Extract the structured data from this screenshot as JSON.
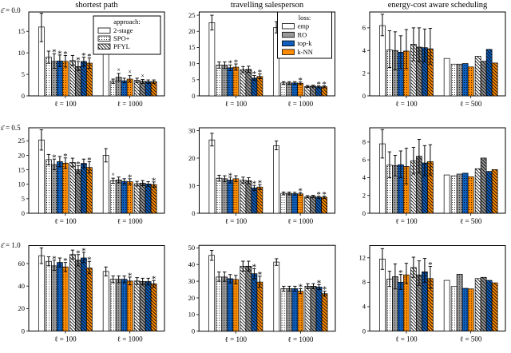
{
  "chart_data": {
    "type": "bar",
    "grid": {
      "rows": 3,
      "cols": 3
    },
    "col_titles": [
      "shortest path",
      "travelling salesperson",
      "energy-cost aware scheduling"
    ],
    "row_labels": [
      "ε̄ = 0.0",
      "ε̄ = 0.5",
      "ε̄ = 1.0"
    ],
    "legends": {
      "approach": {
        "title": "approach:",
        "items": [
          "2-stage",
          "SPO+",
          "PFYL"
        ]
      },
      "loss": {
        "title": "loss:",
        "items": [
          "emp",
          "RO",
          "top-k",
          "k-NN"
        ]
      }
    },
    "bar_order": [
      [
        "2-stage",
        "emp"
      ],
      [
        "SPO+",
        "emp"
      ],
      [
        "SPO+",
        "RO"
      ],
      [
        "SPO+",
        "top-k"
      ],
      [
        "SPO+",
        "k-NN"
      ],
      [
        "PFYL",
        "emp"
      ],
      [
        "PFYL",
        "RO"
      ],
      [
        "PFYL",
        "top-k"
      ],
      [
        "PFYL",
        "k-NN"
      ]
    ],
    "colors": {
      "emp": "#ffffff",
      "RO": "#999999",
      "top-k": "#0e5fbe",
      "k-NN": "#ff8c00"
    },
    "hatches": {
      "2-stage": "none",
      "SPO+": "dots",
      "PFYL": "diag"
    },
    "subplots": [
      {
        "row": 0,
        "col": 0,
        "ylim": [
          0,
          19.5
        ],
        "yticks": [
          0,
          5,
          10,
          15
        ],
        "legend": "approach",
        "groups": [
          {
            "label": "ℓ = 100",
            "values": [
              16.0,
              9.0,
              8.0,
              8.1,
              8.0,
              8.2,
              6.8,
              8.0,
              7.6
            ],
            "err_low": [
              12.6,
              7.6,
              6.4,
              6.8,
              6.7,
              7.0,
              5.9,
              6.9,
              6.4
            ],
            "err_high": [
              19.2,
              10.4,
              9.8,
              9.5,
              9.4,
              9.4,
              8.0,
              9.0,
              8.8
            ],
            "marks": [
              "",
              "",
              "*",
              "*",
              "*",
              "",
              "*",
              "*",
              "*"
            ]
          },
          {
            "label": "ℓ = 1000",
            "values": [
              13.0,
              3.4,
              4.3,
              3.5,
              3.9,
              3.6,
              3.4,
              3.3,
              3.3
            ],
            "err_low": [
              11.0,
              2.9,
              3.4,
              3.0,
              3.2,
              3.1,
              2.9,
              2.9,
              2.9
            ],
            "err_high": [
              15.0,
              3.9,
              5.2,
              4.1,
              4.7,
              4.1,
              3.8,
              3.7,
              3.7
            ],
            "marks": [
              "",
              "",
              "×",
              "",
              "×",
              "",
              "×",
              "",
              ""
            ]
          }
        ]
      },
      {
        "row": 0,
        "col": 1,
        "ylim": [
          0,
          26
        ],
        "yticks": [
          0,
          5,
          10,
          15,
          20,
          25
        ],
        "legend": "loss",
        "groups": [
          {
            "label": "ℓ = 100",
            "values": [
              22.7,
              9.5,
              9.5,
              8.7,
              8.9,
              8.1,
              8.2,
              5.5,
              6.0
            ],
            "err_low": [
              20.4,
              8.6,
              8.5,
              7.8,
              8.0,
              7.2,
              7.3,
              4.8,
              5.3
            ],
            "err_high": [
              25.0,
              10.5,
              10.5,
              9.6,
              9.9,
              9.1,
              9.2,
              6.3,
              6.8
            ],
            "marks": [
              "",
              "",
              "",
              "*",
              "*",
              "",
              "",
              "*",
              "*"
            ]
          },
          {
            "label": "ℓ = 1000",
            "values": [
              21.2,
              4.0,
              4.0,
              4.0,
              3.9,
              2.9,
              3.0,
              2.8,
              2.8
            ],
            "err_low": [
              19.5,
              3.6,
              3.6,
              3.6,
              3.5,
              2.6,
              2.7,
              2.5,
              2.5
            ],
            "err_high": [
              23.0,
              4.4,
              4.4,
              4.4,
              4.3,
              3.2,
              3.3,
              3.1,
              3.1
            ],
            "marks": [
              "",
              "",
              "",
              "",
              "*",
              "",
              "",
              "*",
              "*"
            ]
          }
        ]
      },
      {
        "row": 0,
        "col": 2,
        "ylim": [
          0,
          7.4
        ],
        "yticks": [
          0,
          2,
          4,
          6
        ],
        "legend": "",
        "groups": [
          {
            "label": "ℓ = 100",
            "values": [
              6.2,
              4.05,
              4.0,
              3.85,
              3.95,
              4.55,
              4.3,
              4.25,
              4.15
            ],
            "err_low": [
              5.3,
              2.5,
              2.3,
              2.4,
              2.4,
              3.1,
              3.0,
              3.0,
              2.8
            ],
            "err_high": [
              7.2,
              5.75,
              5.65,
              5.3,
              5.85,
              6.0,
              6.0,
              5.9,
              5.95
            ],
            "marks": [
              "",
              "",
              "",
              "",
              "",
              "",
              "",
              "",
              ""
            ]
          },
          {
            "label": "ℓ = 500",
            "values": [
              3.3,
              2.8,
              2.8,
              2.85,
              2.55,
              3.5,
              3.05,
              4.1,
              2.9
            ],
            "err_low": null,
            "err_high": null,
            "marks": [
              "",
              "",
              "",
              "",
              "",
              "",
              "",
              "",
              ""
            ]
          }
        ]
      },
      {
        "row": 1,
        "col": 0,
        "ylim": [
          0,
          29.5
        ],
        "yticks": [
          0,
          5,
          10,
          15,
          20,
          25
        ],
        "legend": "",
        "groups": [
          {
            "label": "ℓ = 100",
            "values": [
              25.3,
              18.5,
              16.8,
              17.8,
              17.3,
              17.5,
              15.0,
              17.2,
              15.8
            ],
            "err_low": [
              21.8,
              16.7,
              15.0,
              16.0,
              15.5,
              16.0,
              13.7,
              15.7,
              13.9
            ],
            "err_high": [
              28.8,
              20.3,
              18.7,
              19.6,
              19.1,
              19.0,
              16.4,
              18.7,
              17.8
            ],
            "marks": [
              "",
              "",
              "*",
              "",
              "*",
              "",
              "*",
              "",
              "*"
            ]
          },
          {
            "label": "ℓ = 1000",
            "values": [
              20.0,
              11.2,
              11.5,
              11.0,
              10.9,
              10.2,
              10.4,
              10.1,
              9.9
            ],
            "err_low": [
              17.7,
              10.3,
              10.5,
              10.1,
              9.9,
              9.4,
              9.5,
              9.3,
              9.0
            ],
            "err_high": [
              22.3,
              12.1,
              12.5,
              11.9,
              11.9,
              11.0,
              11.3,
              10.9,
              10.8
            ],
            "marks": [
              "",
              "×",
              "",
              "",
              "*",
              "",
              "",
              "",
              "*"
            ]
          }
        ]
      },
      {
        "row": 1,
        "col": 1,
        "ylim": [
          0,
          31
        ],
        "yticks": [
          0,
          10,
          20,
          30
        ],
        "legend": "",
        "groups": [
          {
            "label": "ℓ = 100",
            "values": [
              26.6,
              12.7,
              12.5,
              12.0,
              12.5,
              12.0,
              11.8,
              9.2,
              9.5
            ],
            "err_low": [
              24.4,
              11.6,
              11.4,
              11.0,
              11.4,
              10.9,
              10.7,
              8.3,
              8.6
            ],
            "err_high": [
              29.0,
              13.8,
              13.6,
              13.1,
              13.6,
              13.1,
              12.9,
              10.1,
              10.4
            ],
            "marks": [
              "",
              "",
              "",
              "*",
              "",
              "",
              "",
              "*",
              "*"
            ]
          },
          {
            "label": "ℓ = 1000",
            "values": [
              24.5,
              7.2,
              7.2,
              7.1,
              7.0,
              6.0,
              6.1,
              5.8,
              5.8
            ],
            "err_low": [
              23.0,
              6.7,
              6.7,
              6.6,
              6.5,
              5.6,
              5.7,
              5.4,
              5.4
            ],
            "err_high": [
              26.2,
              7.7,
              7.7,
              7.6,
              7.5,
              6.4,
              6.5,
              6.2,
              6.2
            ],
            "marks": [
              "",
              "",
              "",
              "",
              "*",
              "",
              "",
              "*",
              "*"
            ]
          }
        ]
      },
      {
        "row": 1,
        "col": 2,
        "ylim": [
          0,
          9.6
        ],
        "yticks": [
          0,
          2,
          4,
          6,
          8
        ],
        "legend": "",
        "groups": [
          {
            "label": "ℓ = 100",
            "values": [
              7.8,
              5.4,
              5.35,
              5.45,
              5.25,
              5.9,
              6.4,
              5.65,
              5.8
            ],
            "err_low": [
              6.2,
              4.0,
              4.2,
              4.0,
              3.3,
              4.4,
              4.5,
              4.2,
              4.3
            ],
            "err_high": [
              9.4,
              6.9,
              6.5,
              7.0,
              7.3,
              7.4,
              8.3,
              7.6,
              7.7
            ],
            "marks": [
              "",
              "",
              "",
              "",
              "",
              "",
              "",
              "",
              ""
            ]
          },
          {
            "label": "ℓ = 500",
            "values": [
              4.3,
              4.2,
              4.4,
              4.5,
              4.1,
              5.0,
              6.2,
              4.7,
              4.9
            ],
            "err_low": null,
            "err_high": null,
            "marks": [
              "",
              "",
              "",
              "",
              "",
              "",
              "",
              "",
              ""
            ]
          }
        ]
      },
      {
        "row": 2,
        "col": 0,
        "ylim": [
          0,
          76
        ],
        "yticks": [
          0,
          20,
          40,
          60
        ],
        "legend": "",
        "groups": [
          {
            "label": "ℓ = 100",
            "values": [
              67,
              62,
              58,
              61,
              57,
              68,
              63,
              65,
              56
            ],
            "err_low": [
              60,
              58,
              54,
              57,
              53,
              64,
              58,
              61,
              51
            ],
            "err_high": [
              74,
              66,
              63,
              65,
              61,
              72,
              68,
              70,
              62
            ],
            "marks": [
              "",
              "",
              "*",
              "",
              "*",
              "",
              "*",
              "*",
              "*"
            ]
          },
          {
            "label": "ℓ = 1000",
            "values": [
              53,
              46,
              46,
              46,
              44.5,
              44.5,
              44,
              44,
              42
            ],
            "err_low": [
              49,
              43,
              43,
              43,
              41,
              41.5,
              41,
              41,
              39
            ],
            "err_high": [
              57,
              49,
              49,
              49,
              48,
              47.5,
              47,
              47,
              45
            ],
            "marks": [
              "",
              "",
              "",
              "",
              "*",
              "",
              "",
              "",
              "*"
            ]
          }
        ]
      },
      {
        "row": 2,
        "col": 1,
        "ylim": [
          0,
          51.5
        ],
        "yticks": [
          0,
          10,
          20,
          30,
          40,
          50
        ],
        "legend": "",
        "groups": [
          {
            "label": "ℓ = 100",
            "values": [
              45.5,
              32.5,
              32.5,
              31.5,
              31,
              39,
              39,
              34.5,
              29.5
            ],
            "err_low": [
              42.5,
              30,
              30,
              29,
              28.5,
              36,
              36,
              31.5,
              26.5
            ],
            "err_high": [
              48.5,
              35.5,
              35.5,
              34,
              33.5,
              42,
              42,
              37.5,
              33
            ],
            "marks": [
              "",
              "",
              "",
              "",
              "",
              "",
              "",
              "*",
              "*"
            ]
          },
          {
            "label": "ℓ = 1000",
            "values": [
              41.5,
              25.5,
              25.5,
              25.5,
              24,
              27,
              27,
              26.5,
              22.5
            ],
            "err_low": [
              39.5,
              24,
              24,
              24,
              22.5,
              25.5,
              25.5,
              25,
              21
            ],
            "err_high": [
              43.5,
              27,
              27,
              27,
              25.5,
              28.5,
              28.5,
              28,
              24
            ],
            "marks": [
              "",
              "",
              "",
              "",
              "*",
              "",
              "",
              "*",
              "*"
            ]
          }
        ]
      },
      {
        "row": 2,
        "col": 2,
        "ylim": [
          0,
          14
        ],
        "yticks": [
          0,
          4,
          8,
          12
        ],
        "legend": "",
        "groups": [
          {
            "label": "ℓ = 100",
            "values": [
              11.8,
              8.5,
              8.9,
              8.0,
              9.2,
              10.4,
              9.2,
              9.7,
              8.6
            ],
            "err_low": [
              10.1,
              7.3,
              6.9,
              6.8,
              7.8,
              8.8,
              7.5,
              8.0,
              7.0
            ],
            "err_high": [
              13.5,
              9.8,
              11.0,
              9.3,
              11.1,
              12.1,
              11.5,
              11.9,
              10.6
            ],
            "marks": [
              "",
              "",
              "",
              "*",
              "",
              "",
              "",
              "",
              "*"
            ]
          },
          {
            "label": "ℓ = 500",
            "values": [
              8.3,
              7.3,
              9.3,
              7.0,
              6.9,
              8.6,
              8.8,
              8.3,
              7.9
            ],
            "err_low": null,
            "err_high": null,
            "marks": [
              "",
              "",
              "",
              "",
              "",
              "",
              "",
              "",
              ""
            ]
          }
        ]
      }
    ]
  }
}
